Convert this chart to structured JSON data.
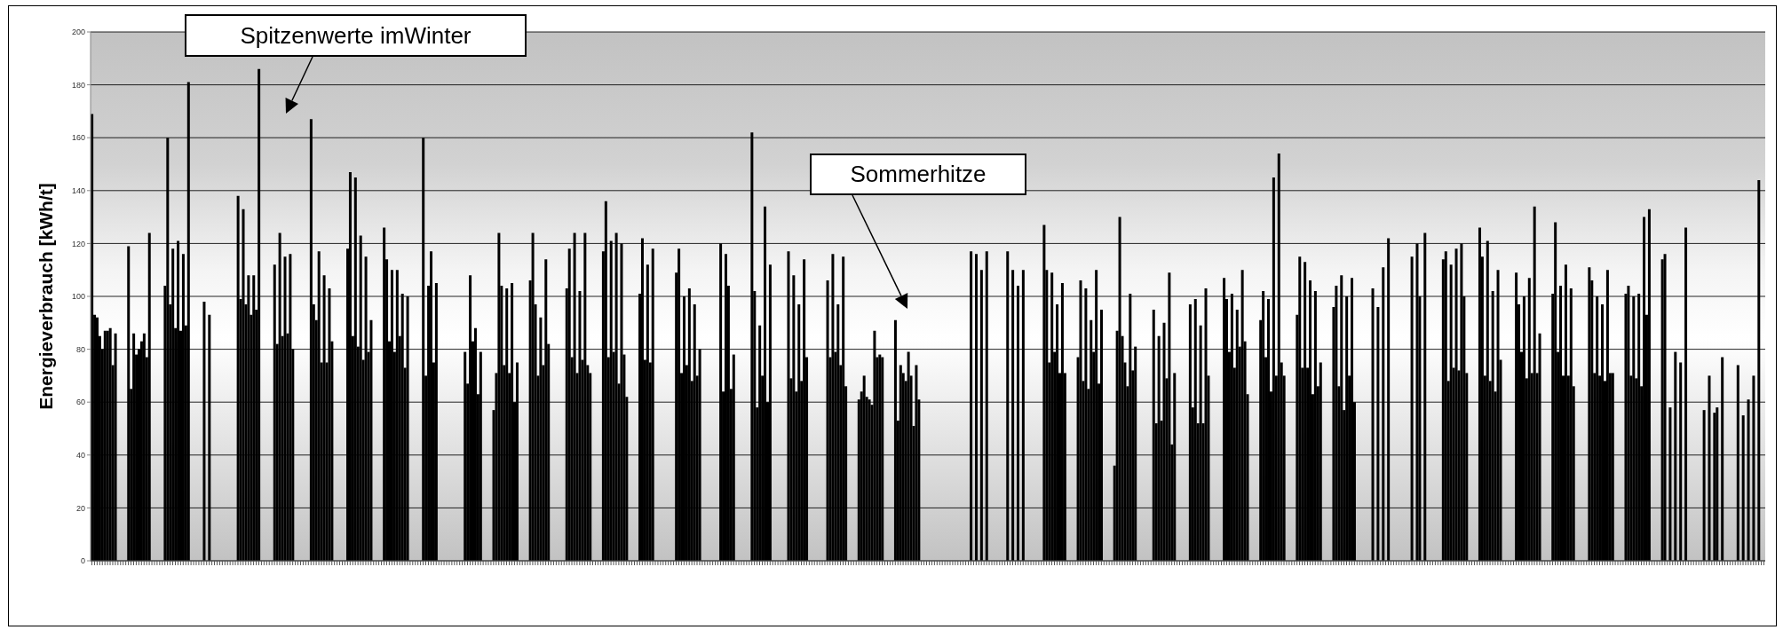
{
  "chart_data": {
    "type": "bar",
    "ylabel": "Energieverbrauch  [kWh/t]",
    "annotations": [
      "Spitzenwerte imWinter",
      "Sommerhitze"
    ],
    "categories": [
      null,
      null,
      null,
      null,
      null,
      null,
      null,
      null,
      null,
      null,
      null,
      null,
      null,
      null,
      null,
      null,
      null,
      null,
      null,
      null,
      null,
      null,
      null,
      null,
      null,
      null,
      null,
      null,
      null,
      null,
      null,
      null,
      null,
      null,
      null,
      null,
      null,
      null,
      null,
      null,
      null,
      null,
      null,
      null,
      null,
      null,
      null,
      null,
      null,
      null,
      null,
      null,
      null,
      null,
      null,
      null,
      null,
      null,
      null,
      null,
      null,
      null,
      null,
      null,
      null,
      null,
      null,
      null,
      null,
      null,
      null,
      null,
      null,
      null,
      null,
      null,
      null,
      null,
      null,
      null,
      null,
      null,
      null,
      null,
      null,
      null,
      null,
      null,
      null,
      null,
      null,
      null,
      null,
      null,
      null,
      null,
      null,
      null,
      null,
      null,
      null,
      null,
      null,
      null,
      null,
      null,
      null,
      null,
      null,
      null,
      null,
      null,
      null,
      null,
      null,
      null,
      null,
      null,
      null,
      null,
      null,
      null,
      null,
      null,
      null,
      null,
      null,
      null,
      null,
      null,
      null,
      null,
      null,
      null,
      null,
      null,
      null,
      null,
      null,
      null,
      null,
      null,
      null,
      null,
      null,
      null,
      null,
      null,
      null,
      null,
      null,
      null,
      null,
      null,
      null,
      null,
      null,
      null,
      null,
      null,
      null,
      null,
      null,
      null,
      null,
      null,
      null,
      null,
      null,
      null,
      null,
      null,
      null,
      null,
      null,
      null,
      null,
      null,
      null,
      null,
      null,
      null,
      null,
      null,
      null,
      null,
      null,
      null,
      null,
      null,
      null,
      null,
      null,
      null,
      null,
      null,
      null,
      null,
      null,
      null,
      null,
      null,
      null,
      null,
      null,
      null,
      null,
      null,
      null,
      null,
      null,
      null,
      null,
      null,
      null,
      null,
      null,
      null,
      null,
      null,
      null,
      null,
      null,
      null,
      null,
      null,
      null,
      null,
      null,
      null,
      null,
      null,
      null,
      null,
      null,
      null,
      null,
      null,
      null,
      null,
      null,
      null,
      null,
      null,
      null,
      null,
      null,
      null,
      null,
      null,
      null,
      null,
      null,
      null,
      null,
      null,
      null,
      null,
      null,
      null,
      null,
      null,
      null,
      null,
      null,
      null,
      null,
      null,
      null,
      null,
      null,
      null,
      null,
      null,
      null,
      null,
      null,
      null,
      null,
      null,
      null,
      null,
      null,
      null,
      null,
      null,
      null,
      null,
      null,
      null,
      null,
      null,
      null,
      null,
      null,
      null,
      null,
      null,
      null,
      null,
      null,
      null,
      null,
      null,
      null,
      null,
      null,
      null,
      null,
      null,
      null,
      null,
      null,
      null,
      null,
      null,
      null,
      null,
      null,
      null,
      null,
      null,
      null,
      null,
      null,
      null,
      null,
      null,
      null,
      null,
      null,
      null,
      null,
      null,
      null,
      null,
      null,
      null,
      null,
      null,
      null,
      null,
      null,
      null,
      null,
      null,
      null,
      null,
      null,
      null,
      null,
      null,
      null,
      null,
      null,
      null,
      null,
      null,
      null,
      null,
      null,
      null,
      null,
      null,
      null,
      null,
      null,
      null,
      null,
      null,
      null,
      null,
      null,
      null,
      null,
      null,
      null,
      null,
      null,
      null,
      null,
      null,
      null,
      null,
      null,
      null,
      null,
      null,
      null,
      null,
      null,
      null,
      null,
      null,
      null,
      null,
      null,
      null,
      null,
      null,
      null,
      null,
      null,
      null,
      null,
      null,
      null,
      null,
      null,
      null,
      null,
      null,
      null,
      null,
      null,
      null,
      null,
      null,
      null,
      null,
      null,
      null,
      null,
      null,
      null,
      null,
      null,
      null,
      null,
      null,
      null,
      null,
      null,
      null,
      null,
      null,
      null,
      null,
      null,
      null,
      null,
      null,
      null,
      null,
      null,
      null,
      null,
      null,
      null,
      null,
      null,
      null,
      null,
      null,
      null,
      null,
      null,
      null,
      null,
      null,
      null,
      null,
      null,
      null,
      null,
      null,
      null,
      null,
      null,
      null,
      null,
      null,
      null,
      null,
      null,
      null,
      null,
      null,
      null,
      null,
      null,
      null,
      null,
      null,
      null,
      null,
      null,
      null,
      null,
      null,
      null,
      null,
      null,
      null,
      null,
      null,
      null,
      null,
      null,
      null,
      null,
      null,
      null,
      null,
      null,
      null,
      null,
      null,
      null,
      null,
      null,
      null,
      null,
      null,
      null,
      null,
      null,
      null,
      null,
      null,
      null,
      null,
      null,
      null,
      null,
      null,
      null,
      null,
      null,
      null,
      null,
      null,
      null,
      null,
      null,
      null,
      null,
      null,
      null,
      null,
      null,
      null,
      null,
      null,
      null,
      null,
      null,
      null,
      null,
      null,
      null,
      null,
      null,
      null,
      null,
      null,
      null,
      null,
      null,
      null,
      null,
      null,
      null,
      null,
      null,
      null,
      null,
      null,
      null,
      null,
      null,
      null,
      null,
      null,
      null,
      null,
      null,
      null,
      null,
      null,
      null,
      null,
      null,
      null,
      null,
      null,
      null,
      null,
      null,
      null,
      null,
      null,
      null,
      null,
      null,
      null,
      null,
      null,
      null,
      null,
      null,
      null,
      null,
      null,
      null,
      null,
      null,
      null,
      null,
      null,
      null,
      null,
      null,
      null,
      null,
      null,
      null,
      null,
      null,
      null,
      null,
      null,
      null,
      null,
      null,
      null,
      null,
      null,
      null,
      null,
      null,
      null,
      null,
      null,
      null,
      null,
      null,
      null,
      null,
      null,
      null,
      null
    ],
    "values": [
      169,
      93,
      92,
      85,
      80,
      87,
      87,
      88,
      74,
      86,
      null,
      null,
      null,
      null,
      119,
      65,
      86,
      78,
      80,
      83,
      86,
      77,
      124,
      null,
      null,
      null,
      null,
      null,
      104,
      160,
      97,
      118,
      88,
      121,
      87,
      116,
      89,
      181,
      null,
      null,
      null,
      null,
      null,
      98,
      null,
      93,
      null,
      null,
      null,
      null,
      null,
      null,
      null,
      null,
      null,
      null,
      138,
      99,
      133,
      97,
      108,
      93,
      108,
      95,
      186,
      null,
      null,
      null,
      null,
      null,
      112,
      82,
      124,
      85,
      115,
      86,
      116,
      80,
      null,
      null,
      null,
      null,
      null,
      null,
      167,
      97,
      91,
      117,
      75,
      108,
      75,
      103,
      83,
      null,
      null,
      null,
      null,
      null,
      118,
      147,
      85,
      145,
      81,
      123,
      76,
      115,
      79,
      91,
      null,
      null,
      null,
      null,
      126,
      114,
      83,
      110,
      79,
      110,
      85,
      101,
      73,
      100,
      null,
      null,
      null,
      null,
      null,
      160,
      70,
      104,
      117,
      75,
      105,
      null,
      null,
      null,
      null,
      null,
      null,
      null,
      null,
      null,
      null,
      79,
      67,
      108,
      83,
      88,
      63,
      79,
      null,
      null,
      null,
      null,
      57,
      71,
      124,
      104,
      74,
      103,
      71,
      105,
      60,
      75,
      null,
      null,
      null,
      null,
      106,
      124,
      97,
      70,
      92,
      74,
      114,
      82,
      null,
      null,
      null,
      null,
      null,
      null,
      103,
      118,
      77,
      124,
      71,
      102,
      76,
      124,
      74,
      71,
      null,
      null,
      null,
      null,
      117,
      136,
      77,
      121,
      79,
      124,
      67,
      120,
      78,
      62,
      null,
      null,
      null,
      null,
      101,
      122,
      76,
      112,
      75,
      118,
      null,
      null,
      null,
      null,
      null,
      null,
      null,
      null,
      109,
      118,
      71,
      100,
      74,
      103,
      68,
      97,
      70,
      80,
      null,
      null,
      null,
      null,
      null,
      null,
      null,
      120,
      64,
      116,
      104,
      65,
      78,
      null,
      null,
      null,
      null,
      null,
      null,
      162,
      102,
      58,
      89,
      70,
      134,
      60,
      112,
      null,
      null,
      null,
      null,
      null,
      null,
      117,
      69,
      108,
      64,
      97,
      68,
      114,
      77,
      null,
      null,
      null,
      null,
      null,
      null,
      null,
      106,
      77,
      116,
      79,
      97,
      74,
      115,
      66,
      null,
      null,
      null,
      null,
      61,
      64,
      70,
      62,
      61,
      59,
      87,
      77,
      78,
      77,
      null,
      null,
      null,
      null,
      91,
      53,
      74,
      71,
      68,
      79,
      70,
      51,
      74,
      61,
      null,
      null,
      null,
      null,
      null,
      null,
      null,
      null,
      null,
      null,
      null,
      null,
      null,
      null,
      null,
      null,
      null,
      null,
      null,
      117,
      null,
      116,
      null,
      110,
      null,
      117,
      null,
      null,
      null,
      null,
      null,
      null,
      null,
      117,
      null,
      110,
      null,
      104,
      null,
      110,
      null,
      null,
      null,
      null,
      null,
      null,
      null,
      127,
      110,
      75,
      109,
      79,
      97,
      71,
      105,
      71,
      null,
      null,
      null,
      null,
      77,
      106,
      68,
      103,
      65,
      91,
      79,
      110,
      67,
      95,
      null,
      null,
      null,
      null,
      36,
      87,
      130,
      85,
      75,
      66,
      101,
      72,
      81,
      null,
      null,
      null,
      null,
      null,
      null,
      95,
      52,
      85,
      53,
      90,
      69,
      109,
      44,
      71,
      null,
      null,
      null,
      null,
      null,
      97,
      58,
      99,
      52,
      89,
      52,
      103,
      70,
      null,
      null,
      null,
      null,
      null,
      107,
      99,
      79,
      101,
      73,
      95,
      81,
      110,
      83,
      63,
      null,
      null,
      null,
      null,
      91,
      102,
      77,
      99,
      64,
      145,
      70,
      154,
      75,
      70,
      null,
      null,
      null,
      null,
      93,
      115,
      73,
      113,
      73,
      106,
      63,
      102,
      66,
      75,
      null,
      null,
      null,
      null,
      96,
      104,
      66,
      108,
      57,
      100,
      70,
      107,
      60,
      null,
      null,
      null,
      null,
      null,
      null,
      103,
      null,
      96,
      null,
      111,
      null,
      122,
      null,
      null,
      null,
      null,
      null,
      null,
      null,
      null,
      115,
      null,
      120,
      100,
      null,
      124,
      null,
      null,
      null,
      null,
      null,
      null,
      114,
      117,
      68,
      112,
      73,
      118,
      72,
      120,
      100,
      71,
      null,
      null,
      null,
      null,
      126,
      115,
      70,
      121,
      68,
      102,
      64,
      110,
      76,
      null,
      null,
      null,
      null,
      null,
      109,
      97,
      79,
      100,
      69,
      107,
      71,
      134,
      71,
      86,
      null,
      null,
      null,
      null,
      101,
      128,
      79,
      104,
      70,
      112,
      70,
      103,
      66,
      null,
      null,
      null,
      null,
      null,
      111,
      106,
      71,
      100,
      70,
      97,
      68,
      110,
      71,
      71,
      null,
      null,
      null,
      null,
      101,
      104,
      70,
      100,
      69,
      101,
      66,
      130,
      93,
      133,
      null,
      null,
      null,
      null,
      114,
      116,
      null,
      58,
      null,
      79,
      null,
      75,
      null,
      126,
      null,
      null,
      null,
      null,
      null,
      null,
      57,
      null,
      70,
      null,
      56,
      58,
      null,
      77,
      null,
      null,
      null,
      null,
      null,
      74,
      null,
      55,
      null,
      61,
      null,
      70,
      null,
      144,
      null,
      null
    ],
    "color": "#000000",
    "ylim": [
      0,
      200
    ],
    "yticks": [
      0,
      20,
      40,
      60,
      80,
      100,
      120,
      140,
      160,
      180,
      200
    ],
    "grid": "y",
    "tick_labels": "y"
  }
}
